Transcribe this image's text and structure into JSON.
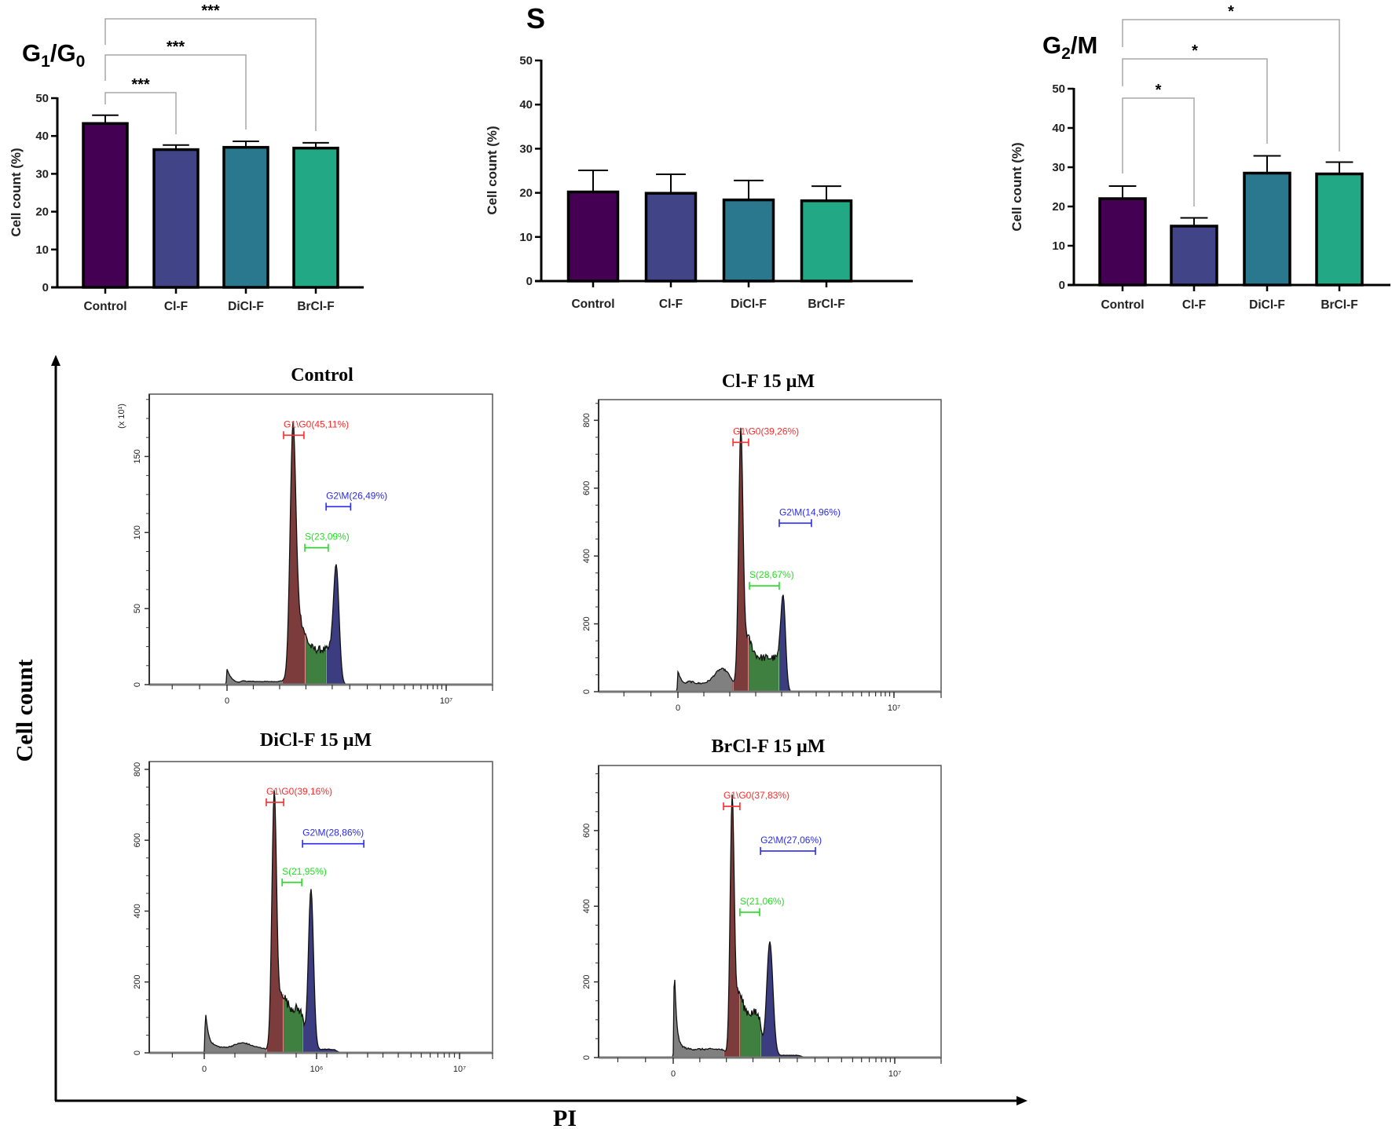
{
  "figure": {
    "ylabel": "Cell count",
    "xlabel": "PI"
  },
  "chart_data": [
    {
      "type": "bar",
      "title_parts": [
        {
          "t": "G"
        },
        {
          "t": "1",
          "sub": true
        },
        {
          "t": "/G"
        },
        {
          "t": "0",
          "sub": true
        }
      ],
      "ylabel": "Cell count (%)",
      "ylim": [
        0,
        50
      ],
      "yticks": [
        "0",
        "10",
        "20",
        "30",
        "40",
        "50"
      ],
      "categories": [
        "Control",
        "Cl-F",
        "DiCl-F",
        "BrCl-F"
      ],
      "values": [
        43.3,
        36.4,
        37.0,
        36.8
      ],
      "error_upper": [
        45.5,
        37.6,
        38.6,
        38.2
      ],
      "colors": [
        "#440154",
        "#414487",
        "#2a788e",
        "#22a884"
      ],
      "comparisons": [
        {
          "from": 0,
          "to": 1,
          "label": "***"
        },
        {
          "from": 0,
          "to": 2,
          "label": "***"
        },
        {
          "from": 0,
          "to": 3,
          "label": "***"
        }
      ]
    },
    {
      "type": "bar",
      "title_parts": [
        {
          "t": "S"
        }
      ],
      "ylabel": "Cell count (%)",
      "ylim": [
        0,
        50
      ],
      "yticks": [
        "0",
        "10",
        "20",
        "30",
        "40",
        "50"
      ],
      "categories": [
        "Control",
        "Cl-F",
        "DiCl-F",
        "BrCl-F"
      ],
      "values": [
        20.2,
        19.9,
        18.4,
        18.2
      ],
      "error_upper": [
        25.1,
        24.2,
        22.8,
        21.5
      ],
      "colors": [
        "#440154",
        "#414487",
        "#2a788e",
        "#22a884"
      ],
      "comparisons": []
    },
    {
      "type": "bar",
      "title_parts": [
        {
          "t": "G"
        },
        {
          "t": "2",
          "sub": true
        },
        {
          "t": "/M"
        }
      ],
      "ylabel": "Cell count (%)",
      "ylim": [
        0,
        50
      ],
      "yticks": [
        "0",
        "10",
        "20",
        "30",
        "40",
        "50"
      ],
      "categories": [
        "Control",
        "Cl-F",
        "DiCl-F",
        "BrCl-F"
      ],
      "values": [
        22.0,
        15.0,
        28.5,
        28.3
      ],
      "error_upper": [
        25.2,
        17.1,
        32.9,
        31.3
      ],
      "colors": [
        "#440154",
        "#414487",
        "#2a788e",
        "#22a884"
      ],
      "comparisons": [
        {
          "from": 0,
          "to": 1,
          "label": "*"
        },
        {
          "from": 0,
          "to": 2,
          "label": "*"
        },
        {
          "from": 0,
          "to": 3,
          "label": "*"
        }
      ]
    },
    {
      "type": "histogram",
      "title": "Control",
      "y_scale_label": "(x 10¹)",
      "ylim": [
        0,
        191
      ],
      "yticks": [
        {
          "v": 0,
          "label": "0"
        },
        {
          "v": 50,
          "label": "50"
        },
        {
          "v": 100,
          "label": "100"
        },
        {
          "v": 150,
          "label": "150"
        }
      ],
      "xticks": [
        {
          "v": 0,
          "label": "0"
        },
        {
          "v": 1000,
          "label": "10⁷"
        }
      ],
      "components": [
        {
          "type": "decay",
          "at": 0,
          "h": 10,
          "tau": 25
        },
        {
          "type": "plateau",
          "from": 60,
          "to": 260,
          "h": 2
        },
        {
          "type": "gauss",
          "c": 301,
          "h": 155,
          "s": 13
        },
        {
          "type": "gauss",
          "c": 322,
          "h": 22,
          "s": 28
        },
        {
          "type": "plateau",
          "from": 320,
          "to": 480,
          "h": 23
        },
        {
          "type": "gauss",
          "c": 498,
          "h": 78,
          "s": 13
        }
      ],
      "regions": [
        {
          "phase": "debris",
          "from": -400,
          "to": 254,
          "color": "#808080"
        },
        {
          "phase": "G1/G0",
          "from": 254,
          "to": 355,
          "color": "#7d3c3c"
        },
        {
          "phase": "S",
          "from": 355,
          "to": 452,
          "color": "#3f7f3f"
        },
        {
          "phase": "G2/M",
          "from": 452,
          "to": 600,
          "color": "#3c3c80"
        }
      ],
      "gates": [
        {
          "label": "G1\\G0(45,11%)",
          "range": [
            258,
            351
          ],
          "level": 164,
          "color": "#ff2a2a"
        },
        {
          "label": "S(23,09%)",
          "range": [
            355,
            462
          ],
          "level": 90,
          "color": "#22dd22"
        },
        {
          "label": "G2\\M(26,49%)",
          "range": [
            452,
            564
          ],
          "level": 117,
          "color": "#2a2aee"
        }
      ]
    },
    {
      "type": "histogram",
      "title": "Cl-F 15 µM",
      "ylim": [
        0,
        861
      ],
      "yticks": [
        {
          "v": 0,
          "label": "0"
        },
        {
          "v": 200,
          "label": "200"
        },
        {
          "v": 400,
          "label": "400"
        },
        {
          "v": 600,
          "label": "600"
        },
        {
          "v": 800,
          "label": "800"
        }
      ],
      "xticks": [
        {
          "v": 0,
          "label": "0"
        },
        {
          "v": 1000,
          "label": "10⁷"
        }
      ],
      "components": [
        {
          "type": "decay",
          "at": 0,
          "h": 60,
          "tau": 30
        },
        {
          "type": "plateau",
          "from": 40,
          "to": 250,
          "h": 22
        },
        {
          "type": "gauss",
          "c": 204,
          "h": 45,
          "s": 35
        },
        {
          "type": "gauss",
          "c": 291,
          "h": 712,
          "s": 10
        },
        {
          "type": "gauss",
          "c": 310,
          "h": 80,
          "s": 25
        },
        {
          "type": "plateau",
          "from": 310,
          "to": 475,
          "h": 100
        },
        {
          "type": "gauss",
          "c": 487,
          "h": 275,
          "s": 11
        }
      ],
      "regions": [
        {
          "phase": "debris",
          "from": -400,
          "to": 255,
          "color": "#808080"
        },
        {
          "phase": "G1/G0",
          "from": 255,
          "to": 327,
          "color": "#7d3c3c"
        },
        {
          "phase": "S",
          "from": 327,
          "to": 469,
          "color": "#3f7f3f"
        },
        {
          "phase": "G2/M",
          "from": 469,
          "to": 600,
          "color": "#3c3c80"
        }
      ],
      "gates": [
        {
          "label": "G1\\G0(39,26%)",
          "range": [
            255,
            327
          ],
          "level": 735,
          "color": "#ff2a2a"
        },
        {
          "label": "S(28,67%)",
          "range": [
            331,
            469
          ],
          "level": 312,
          "color": "#22dd22"
        },
        {
          "label": "G2\\M(14,96%)",
          "range": [
            469,
            618
          ],
          "level": 497,
          "color": "#2a2aee"
        }
      ]
    },
    {
      "type": "histogram",
      "title": "DiCl-F 15 µM",
      "ylim": [
        0,
        822
      ],
      "yticks": [
        {
          "v": 0,
          "label": "0"
        },
        {
          "v": 200,
          "label": "200"
        },
        {
          "v": 400,
          "label": "400"
        },
        {
          "v": 600,
          "label": "600"
        },
        {
          "v": 800,
          "label": "800"
        }
      ],
      "xticks": [
        {
          "v": 0,
          "label": "0"
        },
        {
          "v": 440,
          "label": "10⁶"
        },
        {
          "v": 1000,
          "label": "10⁷"
        }
      ],
      "components": [
        {
          "type": "decay",
          "at": 5,
          "h": 115,
          "tau": 15
        },
        {
          "type": "plateau",
          "from": 30,
          "to": 240,
          "h": 14
        },
        {
          "type": "gauss",
          "c": 150,
          "h": 14,
          "s": 30
        },
        {
          "type": "gauss",
          "c": 274,
          "h": 680,
          "s": 9
        },
        {
          "type": "gauss",
          "c": 290,
          "h": 80,
          "s": 20
        },
        {
          "type": "plateau",
          "from": 295,
          "to": 392,
          "h": 125
        },
        {
          "type": "gauss",
          "c": 418,
          "h": 450,
          "s": 10
        },
        {
          "type": "plateau",
          "from": 390,
          "to": 520,
          "h": 10
        }
      ],
      "regions": [
        {
          "phase": "debris",
          "from": -400,
          "to": 246,
          "color": "#808080"
        },
        {
          "phase": "G1/G0",
          "from": 246,
          "to": 308,
          "color": "#7d3c3c"
        },
        {
          "phase": "S",
          "from": 308,
          "to": 385,
          "color": "#3f7f3f"
        },
        {
          "phase": "G2/M",
          "from": 385,
          "to": 600,
          "color": "#3c3c80"
        }
      ],
      "gates": [
        {
          "label": "G1\\G0(39,16%)",
          "range": [
            243,
            311
          ],
          "level": 707,
          "color": "#ff2a2a"
        },
        {
          "label": "S(21,95%)",
          "range": [
            305,
            382
          ],
          "level": 481,
          "color": "#22dd22"
        },
        {
          "label": "G2\\M(28,86%)",
          "range": [
            385,
            625
          ],
          "level": 590,
          "color": "#2a2aee"
        }
      ]
    },
    {
      "type": "histogram",
      "title": "BrCl-F 15 µM",
      "ylim": [
        0,
        772
      ],
      "yticks": [
        {
          "v": 0,
          "label": "0"
        },
        {
          "v": 200,
          "label": "200"
        },
        {
          "v": 400,
          "label": "400"
        },
        {
          "v": 600,
          "label": "600"
        }
      ],
      "xticks": [
        {
          "v": 0,
          "label": "0"
        },
        {
          "v": 1000,
          "label": "10⁷"
        }
      ],
      "components": [
        {
          "type": "decay",
          "at": 5,
          "h": 240,
          "tau": 12
        },
        {
          "type": "plateau",
          "from": 30,
          "to": 235,
          "h": 22
        },
        {
          "type": "gauss",
          "c": 266,
          "h": 640,
          "s": 9
        },
        {
          "type": "gauss",
          "c": 285,
          "h": 80,
          "s": 20
        },
        {
          "type": "plateau",
          "from": 285,
          "to": 400,
          "h": 118
        },
        {
          "type": "gauss",
          "c": 436,
          "h": 300,
          "s": 14
        },
        {
          "type": "plateau",
          "from": 420,
          "to": 580,
          "h": 6
        }
      ],
      "regions": [
        {
          "phase": "debris",
          "from": -400,
          "to": 230,
          "color": "#808080"
        },
        {
          "phase": "G1/G0",
          "from": 230,
          "to": 301,
          "color": "#7d3c3c"
        },
        {
          "phase": "S",
          "from": 301,
          "to": 394,
          "color": "#3f7f3f"
        },
        {
          "phase": "G2/M",
          "from": 394,
          "to": 620,
          "color": "#3c3c80"
        }
      ],
      "gates": [
        {
          "label": "G1\\G0(37,83%)",
          "range": [
            227,
            301
          ],
          "level": 664,
          "color": "#ff2a2a"
        },
        {
          "label": "S(21,06%)",
          "range": [
            301,
            390
          ],
          "level": 384,
          "color": "#22dd22"
        },
        {
          "label": "G2\\M(27,06%)",
          "range": [
            394,
            642
          ],
          "level": 546,
          "color": "#2a2aee"
        }
      ]
    }
  ]
}
